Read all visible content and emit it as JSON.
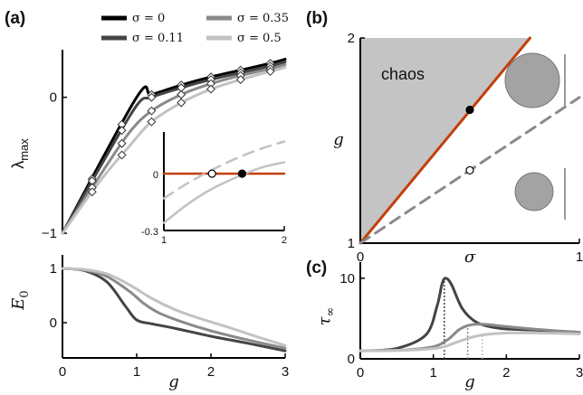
{
  "legend": [
    {
      "label": "σ = 0",
      "color": "#000000"
    },
    {
      "label": "σ = 0.11",
      "color": "#444444"
    },
    {
      "label": "σ = 0.35",
      "color": "#8a8a8a"
    },
    {
      "label": "σ = 0.5",
      "color": "#c2c2c2"
    }
  ],
  "chart_data": [
    {
      "panel": "(a)",
      "type": "line",
      "xlabel": "",
      "ylabel": "λmax",
      "xlim": [
        0,
        3
      ],
      "ylim": [
        -1,
        0.35
      ],
      "yticks": [
        {
          "v": -1,
          "label": "−1"
        },
        {
          "v": 0,
          "label": "0"
        }
      ],
      "series": [
        {
          "name": "σ = 0",
          "color": "#000000",
          "x": [
            0,
            1,
            1.2,
            1.6,
            2,
            2.4,
            2.8,
            3
          ],
          "y": [
            -1,
            0,
            0.02,
            0.09,
            0.15,
            0.2,
            0.25,
            0.28
          ],
          "markers": [
            0.4,
            0.8,
            1.2,
            1.6,
            2,
            2.4,
            2.8
          ]
        },
        {
          "name": "σ = 0.11",
          "color": "#444444",
          "x": [
            0,
            0.5,
            1,
            1.2,
            1.6,
            2,
            2.4,
            2.8,
            3
          ],
          "y": [
            -1,
            -0.52,
            -0.06,
            0.0,
            0.07,
            0.13,
            0.18,
            0.23,
            0.26
          ],
          "markers": [
            0.4,
            0.8,
            1.2,
            1.6,
            2,
            2.4,
            2.8
          ]
        },
        {
          "name": "σ = 0.35",
          "color": "#8a8a8a",
          "x": [
            0,
            0.5,
            0.9,
            1.2,
            1.6,
            2,
            2.4,
            2.8,
            3
          ],
          "y": [
            -1,
            -0.58,
            -0.26,
            -0.1,
            0.02,
            0.1,
            0.16,
            0.21,
            0.24
          ],
          "markers": [
            0.4,
            0.8,
            1.2,
            1.6,
            2,
            2.4,
            2.8
          ]
        },
        {
          "name": "σ = 0.5",
          "color": "#c2c2c2",
          "x": [
            0,
            0.5,
            0.9,
            1.2,
            1.6,
            2,
            2.4,
            2.8,
            3
          ],
          "y": [
            -1,
            -0.62,
            -0.36,
            -0.18,
            -0.04,
            0.06,
            0.13,
            0.19,
            0.22
          ],
          "markers": [
            0.4,
            0.8,
            1.2,
            1.6,
            2,
            2.4,
            2.8
          ]
        }
      ]
    },
    {
      "panel": "(a) inset",
      "type": "line",
      "xlim": [
        1,
        2
      ],
      "ylim": [
        -0.3,
        0.22
      ],
      "xticks": [
        {
          "v": 1,
          "label": "1"
        },
        {
          "v": 2,
          "label": "2"
        }
      ],
      "yticks": [
        {
          "v": 0,
          "label": "0"
        },
        {
          "v": -0.3,
          "label": "-0.3"
        }
      ],
      "series": [
        {
          "name": "threshold",
          "color": "#c0400a",
          "style": "solid",
          "x": [
            1,
            2
          ],
          "y": [
            0,
            0
          ]
        },
        {
          "name": "σ = 0.5",
          "color": "#c2c2c2",
          "style": "dashed",
          "x": [
            1,
            1.2,
            1.4,
            1.6,
            1.8,
            2
          ],
          "y": [
            -0.13,
            -0.05,
            0.02,
            0.08,
            0.13,
            0.17
          ]
        },
        {
          "name": "σ = 0.5",
          "color": "#c2c2c2",
          "style": "solid",
          "x": [
            1,
            1.2,
            1.4,
            1.6,
            1.8,
            2
          ],
          "y": [
            -0.26,
            -0.16,
            -0.08,
            -0.02,
            0.03,
            0.06
          ]
        }
      ],
      "points": [
        {
          "x": 1.4,
          "y": 0,
          "fill": "open"
        },
        {
          "x": 1.65,
          "y": 0,
          "fill": "filled"
        }
      ]
    },
    {
      "panel": "",
      "type": "line",
      "xlabel": "g",
      "ylabel": "E0",
      "xlim": [
        0,
        3
      ],
      "ylim": [
        -0.65,
        1.25
      ],
      "xticks": [
        {
          "v": 0,
          "label": "0"
        },
        {
          "v": 1,
          "label": "1"
        },
        {
          "v": 2,
          "label": "2"
        },
        {
          "v": 3,
          "label": "3"
        }
      ],
      "yticks": [
        {
          "v": 1,
          "label": "1"
        },
        {
          "v": 0,
          "label": "0"
        }
      ],
      "series": [
        {
          "name": "σ = 0.11",
          "color": "#444444",
          "x": [
            0,
            0.3,
            0.6,
            0.85,
            1,
            1.2,
            1.5,
            2,
            2.5,
            3
          ],
          "y": [
            1,
            0.96,
            0.75,
            0.3,
            0.05,
            -0.02,
            -0.1,
            -0.25,
            -0.38,
            -0.52
          ]
        },
        {
          "name": "σ = 0.35",
          "color": "#8a8a8a",
          "x": [
            0,
            0.3,
            0.6,
            0.9,
            1.1,
            1.3,
            1.6,
            2,
            2.5,
            3
          ],
          "y": [
            1,
            0.97,
            0.85,
            0.58,
            0.35,
            0.18,
            0.02,
            -0.15,
            -0.32,
            -0.47
          ]
        },
        {
          "name": "σ = 0.5",
          "color": "#c2c2c2",
          "x": [
            0,
            0.3,
            0.6,
            0.9,
            1.2,
            1.5,
            1.8,
            2.2,
            2.6,
            3
          ],
          "y": [
            1,
            0.98,
            0.9,
            0.7,
            0.45,
            0.25,
            0.1,
            -0.07,
            -0.25,
            -0.42
          ]
        }
      ]
    },
    {
      "panel": "(b)",
      "type": "area",
      "xlabel": "σ",
      "ylabel": "g",
      "xlim": [
        0,
        1
      ],
      "ylim": [
        1,
        2
      ],
      "xticks": [
        {
          "v": 0,
          "label": "0"
        },
        {
          "v": 1,
          "label": "1"
        }
      ],
      "yticks": [
        {
          "v": 1,
          "label": "1"
        },
        {
          "v": 2,
          "label": "2"
        }
      ],
      "region_label": "chaos",
      "series": [
        {
          "name": "boundary",
          "color": "#c0400a",
          "style": "solid",
          "x": [
            0,
            0.775
          ],
          "y": [
            1,
            2
          ]
        },
        {
          "name": "",
          "color": "#8a8a8a",
          "style": "dashed",
          "x": [
            0,
            1
          ],
          "y": [
            1,
            1.71
          ]
        }
      ],
      "points": [
        {
          "x": 0.5,
          "y": 1.65,
          "fill": "filled"
        },
        {
          "x": 0.5,
          "y": 1.355,
          "fill": "open"
        }
      ]
    },
    {
      "panel": "(c)",
      "type": "line",
      "xlabel": "g",
      "ylabel": "τ∞",
      "xlim": [
        0,
        3
      ],
      "ylim": [
        0,
        12
      ],
      "xticks": [
        {
          "v": 0,
          "label": "0"
        },
        {
          "v": 1,
          "label": "1"
        },
        {
          "v": 2,
          "label": "2"
        },
        {
          "v": 3,
          "label": "3"
        }
      ],
      "yticks": [
        {
          "v": 10,
          "label": "10"
        },
        {
          "v": 0,
          "label": "0"
        }
      ],
      "series": [
        {
          "name": "σ = 0.11",
          "color": "#444444",
          "x": [
            0,
            0.5,
            0.9,
            1.05,
            1.12,
            1.17,
            1.25,
            1.4,
            1.6,
            1.9,
            2.3,
            3
          ],
          "y": [
            1,
            1.3,
            3,
            6.5,
            9.3,
            10,
            9.2,
            6.2,
            4.5,
            3.8,
            3.6,
            3.3
          ],
          "peak_x": 1.15
        },
        {
          "name": "σ = 0.35",
          "color": "#8a8a8a",
          "x": [
            0,
            0.6,
            1.0,
            1.2,
            1.35,
            1.5,
            1.7,
            2.0,
            2.5,
            3
          ],
          "y": [
            1,
            1.1,
            1.5,
            2.4,
            3.6,
            4.2,
            4.3,
            4.0,
            3.6,
            3.3
          ],
          "peak_x": 1.47
        },
        {
          "name": "σ = 0.5",
          "color": "#c2c2c2",
          "x": [
            0,
            0.7,
            1.1,
            1.3,
            1.5,
            1.7,
            2.0,
            2.5,
            3
          ],
          "y": [
            1,
            1.1,
            1.4,
            2.0,
            2.6,
            3.0,
            3.2,
            3.2,
            3.1
          ],
          "peak_x": 1.67
        }
      ]
    }
  ]
}
